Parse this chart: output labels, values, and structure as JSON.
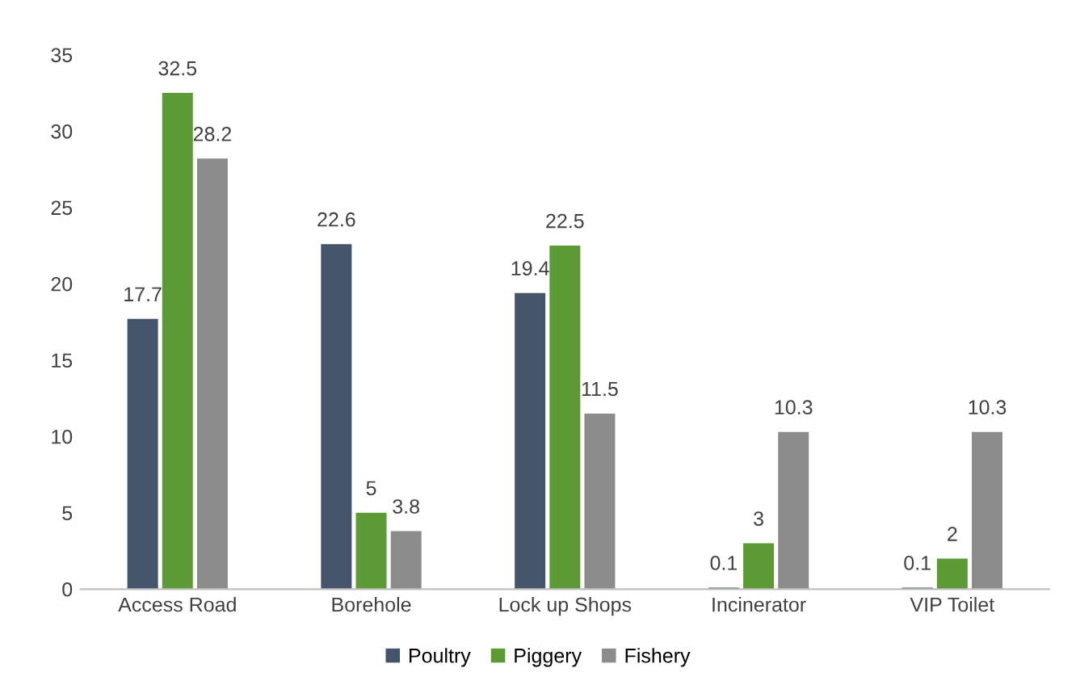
{
  "chart_data": {
    "type": "bar",
    "categories": [
      "Access Road",
      "Borehole",
      "Lock up Shops",
      "Incinerator",
      "VIP Toilet"
    ],
    "series": [
      {
        "name": "Poultry",
        "color": "#44546a",
        "values": [
          17.7,
          22.6,
          19.4,
          0.1,
          0.1
        ]
      },
      {
        "name": "Piggery",
        "color": "#5b9a34",
        "values": [
          32.5,
          5,
          22.5,
          3,
          2
        ]
      },
      {
        "name": "Fishery",
        "color": "#8c8c8c",
        "values": [
          28.2,
          3.8,
          11.5,
          10.3,
          10.3
        ]
      }
    ],
    "ylim": [
      0,
      35
    ],
    "yticks": [
      0,
      5,
      10,
      15,
      20,
      25,
      30,
      35
    ],
    "data_labels": true,
    "grid": false,
    "legend": "bottom"
  }
}
